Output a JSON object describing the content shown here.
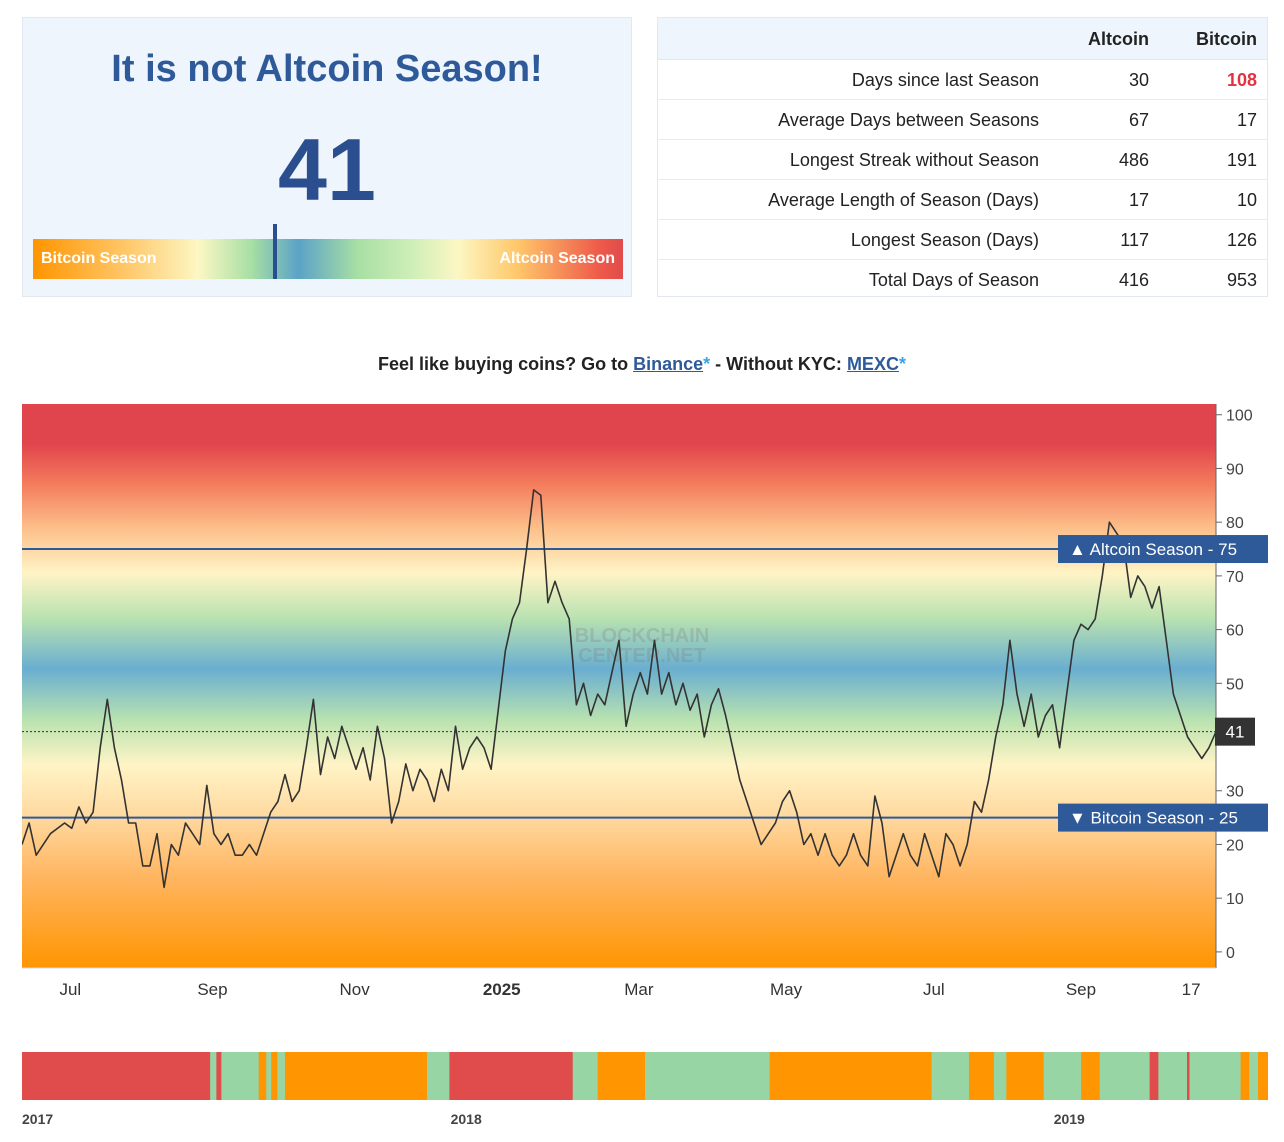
{
  "index_panel": {
    "headline": "It is not Altcoin Season!",
    "value": "41",
    "value_number": 41,
    "gauge": {
      "left_label": "Bitcoin Season",
      "right_label": "Altcoin Season",
      "fraction": 0.41
    }
  },
  "stats": {
    "columns": [
      "Altcoin",
      "Bitcoin"
    ],
    "rows": [
      {
        "label": "Days since last Season",
        "altcoin": "30",
        "bitcoin": "108",
        "bitcoin_highlight": true
      },
      {
        "label": "Average Days between Seasons",
        "altcoin": "67",
        "bitcoin": "17"
      },
      {
        "label": "Longest Streak without Season",
        "altcoin": "486",
        "bitcoin": "191"
      },
      {
        "label": "Average Length of Season (Days)",
        "altcoin": "17",
        "bitcoin": "10"
      },
      {
        "label": "Longest Season (Days)",
        "altcoin": "117",
        "bitcoin": "126"
      },
      {
        "label": "Total Days of Season",
        "altcoin": "416",
        "bitcoin": "953"
      }
    ]
  },
  "promo": {
    "prefix": "Feel like buying coins? Go to ",
    "link1": "Binance",
    "star": "*",
    "middle": " - Without KYC: ",
    "link2": "MEXC"
  },
  "watermark": [
    "BLOCKCHAIN",
    "CENTER.NET"
  ],
  "colors": {
    "altcoin": "#e04b4b",
    "bitcoin": "#ff9500",
    "neutral": "#98d5a4",
    "line_label": "#2e5a9a",
    "title": "#2e5a9a"
  },
  "chart_data": [
    {
      "type": "line",
      "ylim": [
        -3,
        102
      ],
      "yticks": [
        0,
        10,
        20,
        30,
        40,
        50,
        60,
        70,
        80,
        90,
        100
      ],
      "xticks": [
        {
          "label": "Jul",
          "x": 0.08,
          "bold": false
        },
        {
          "label": "Sep",
          "x": 2.08,
          "bold": false
        },
        {
          "label": "Nov",
          "x": 4.08,
          "bold": false
        },
        {
          "label": "2025",
          "x": 6.15,
          "bold": true
        },
        {
          "label": "Mar",
          "x": 8.08,
          "bold": false
        },
        {
          "label": "May",
          "x": 10.15,
          "bold": false
        },
        {
          "label": "Jul",
          "x": 12.23,
          "bold": false
        },
        {
          "label": "Sep",
          "x": 14.3,
          "bold": false
        },
        {
          "label": "17",
          "x": 15.85,
          "bold": false
        }
      ],
      "xrange": [
        -0.6,
        16.2
      ],
      "thresholds": [
        {
          "label": "Altcoin Season",
          "value": 75,
          "arrow": "▲"
        },
        {
          "label": "Bitcoin Season",
          "value": 25,
          "arrow": "▼"
        }
      ],
      "current": {
        "value": 41,
        "label": "41"
      },
      "series": [
        {
          "points": [
            [
              -0.6,
              20
            ],
            [
              -0.5,
              24
            ],
            [
              -0.4,
              18
            ],
            [
              -0.2,
              22
            ],
            [
              0,
              24
            ],
            [
              0.1,
              23
            ],
            [
              0.2,
              27
            ],
            [
              0.3,
              24
            ],
            [
              0.4,
              26
            ],
            [
              0.5,
              38
            ],
            [
              0.6,
              47
            ],
            [
              0.7,
              38
            ],
            [
              0.8,
              32
            ],
            [
              0.9,
              24
            ],
            [
              1.0,
              24
            ],
            [
              1.1,
              16
            ],
            [
              1.2,
              16
            ],
            [
              1.3,
              22
            ],
            [
              1.4,
              12
            ],
            [
              1.5,
              20
            ],
            [
              1.6,
              18
            ],
            [
              1.7,
              24
            ],
            [
              1.8,
              22
            ],
            [
              1.9,
              20
            ],
            [
              2.0,
              31
            ],
            [
              2.1,
              22
            ],
            [
              2.2,
              20
            ],
            [
              2.3,
              22
            ],
            [
              2.4,
              18
            ],
            [
              2.5,
              18
            ],
            [
              2.6,
              20
            ],
            [
              2.7,
              18
            ],
            [
              2.8,
              22
            ],
            [
              2.9,
              26
            ],
            [
              3.0,
              28
            ],
            [
              3.1,
              33
            ],
            [
              3.2,
              28
            ],
            [
              3.3,
              30
            ],
            [
              3.4,
              38
            ],
            [
              3.5,
              47
            ],
            [
              3.6,
              33
            ],
            [
              3.7,
              40
            ],
            [
              3.8,
              36
            ],
            [
              3.9,
              42
            ],
            [
              4.0,
              38
            ],
            [
              4.1,
              34
            ],
            [
              4.2,
              38
            ],
            [
              4.3,
              32
            ],
            [
              4.4,
              42
            ],
            [
              4.5,
              36
            ],
            [
              4.6,
              24
            ],
            [
              4.7,
              28
            ],
            [
              4.8,
              35
            ],
            [
              4.9,
              30
            ],
            [
              5.0,
              34
            ],
            [
              5.1,
              32
            ],
            [
              5.2,
              28
            ],
            [
              5.3,
              34
            ],
            [
              5.4,
              30
            ],
            [
              5.5,
              42
            ],
            [
              5.6,
              34
            ],
            [
              5.7,
              38
            ],
            [
              5.8,
              40
            ],
            [
              5.9,
              38
            ],
            [
              6.0,
              34
            ],
            [
              6.1,
              45
            ],
            [
              6.2,
              56
            ],
            [
              6.3,
              62
            ],
            [
              6.4,
              65
            ],
            [
              6.5,
              75
            ],
            [
              6.6,
              86
            ],
            [
              6.7,
              85
            ],
            [
              6.8,
              65
            ],
            [
              6.9,
              69
            ],
            [
              7.0,
              65
            ],
            [
              7.1,
              62
            ],
            [
              7.2,
              46
            ],
            [
              7.3,
              50
            ],
            [
              7.4,
              44
            ],
            [
              7.5,
              48
            ],
            [
              7.6,
              46
            ],
            [
              7.7,
              52
            ],
            [
              7.8,
              58
            ],
            [
              7.9,
              42
            ],
            [
              8.0,
              48
            ],
            [
              8.1,
              52
            ],
            [
              8.2,
              48
            ],
            [
              8.3,
              58
            ],
            [
              8.4,
              48
            ],
            [
              8.5,
              52
            ],
            [
              8.6,
              46
            ],
            [
              8.7,
              50
            ],
            [
              8.8,
              45
            ],
            [
              8.9,
              48
            ],
            [
              9.0,
              40
            ],
            [
              9.1,
              46
            ],
            [
              9.2,
              49
            ],
            [
              9.3,
              44
            ],
            [
              9.4,
              38
            ],
            [
              9.5,
              32
            ],
            [
              9.6,
              28
            ],
            [
              9.7,
              24
            ],
            [
              9.8,
              20
            ],
            [
              9.9,
              22
            ],
            [
              10.0,
              24
            ],
            [
              10.1,
              28
            ],
            [
              10.2,
              30
            ],
            [
              10.3,
              26
            ],
            [
              10.4,
              20
            ],
            [
              10.5,
              22
            ],
            [
              10.6,
              18
            ],
            [
              10.7,
              22
            ],
            [
              10.8,
              18
            ],
            [
              10.9,
              16
            ],
            [
              11.0,
              18
            ],
            [
              11.1,
              22
            ],
            [
              11.2,
              18
            ],
            [
              11.3,
              16
            ],
            [
              11.4,
              29
            ],
            [
              11.5,
              24
            ],
            [
              11.6,
              14
            ],
            [
              11.7,
              18
            ],
            [
              11.8,
              22
            ],
            [
              11.9,
              18
            ],
            [
              12.0,
              16
            ],
            [
              12.1,
              22
            ],
            [
              12.2,
              18
            ],
            [
              12.3,
              14
            ],
            [
              12.4,
              22
            ],
            [
              12.5,
              20
            ],
            [
              12.6,
              16
            ],
            [
              12.7,
              20
            ],
            [
              12.8,
              28
            ],
            [
              12.9,
              26
            ],
            [
              13.0,
              32
            ],
            [
              13.1,
              40
            ],
            [
              13.2,
              46
            ],
            [
              13.3,
              58
            ],
            [
              13.4,
              48
            ],
            [
              13.5,
              42
            ],
            [
              13.6,
              48
            ],
            [
              13.7,
              40
            ],
            [
              13.8,
              44
            ],
            [
              13.9,
              46
            ],
            [
              14.0,
              38
            ],
            [
              14.1,
              48
            ],
            [
              14.2,
              58
            ],
            [
              14.3,
              61
            ],
            [
              14.4,
              60
            ],
            [
              14.5,
              62
            ],
            [
              14.6,
              70
            ],
            [
              14.7,
              80
            ],
            [
              14.8,
              78
            ],
            [
              14.9,
              76
            ],
            [
              15.0,
              66
            ],
            [
              15.1,
              70
            ],
            [
              15.2,
              68
            ],
            [
              15.3,
              64
            ],
            [
              15.4,
              68
            ],
            [
              15.5,
              58
            ],
            [
              15.6,
              48
            ],
            [
              15.7,
              44
            ],
            [
              15.8,
              40
            ],
            [
              15.9,
              38
            ],
            [
              16.0,
              36
            ],
            [
              16.1,
              38
            ],
            [
              16.2,
              41
            ]
          ]
        }
      ]
    },
    {
      "type": "timeline",
      "labels": [
        {
          "label": "2017",
          "x": 0.0
        },
        {
          "label": "2018",
          "x": 0.344
        },
        {
          "label": "2019",
          "x": 0.828
        }
      ],
      "segments": [
        {
          "start": 0.0,
          "end": 0.151,
          "state": "altcoin"
        },
        {
          "start": 0.151,
          "end": 0.156,
          "state": "neutral"
        },
        {
          "start": 0.156,
          "end": 0.16,
          "state": "altcoin"
        },
        {
          "start": 0.16,
          "end": 0.19,
          "state": "neutral"
        },
        {
          "start": 0.19,
          "end": 0.196,
          "state": "bitcoin"
        },
        {
          "start": 0.196,
          "end": 0.2,
          "state": "neutral"
        },
        {
          "start": 0.2,
          "end": 0.205,
          "state": "bitcoin"
        },
        {
          "start": 0.205,
          "end": 0.211,
          "state": "neutral"
        },
        {
          "start": 0.211,
          "end": 0.325,
          "state": "bitcoin"
        },
        {
          "start": 0.325,
          "end": 0.343,
          "state": "neutral"
        },
        {
          "start": 0.343,
          "end": 0.35,
          "state": "altcoin"
        },
        {
          "start": 0.35,
          "end": 0.442,
          "state": "altcoin"
        },
        {
          "start": 0.442,
          "end": 0.462,
          "state": "neutral"
        },
        {
          "start": 0.462,
          "end": 0.5,
          "state": "bitcoin"
        },
        {
          "start": 0.5,
          "end": 0.6,
          "state": "neutral"
        },
        {
          "start": 0.6,
          "end": 0.73,
          "state": "bitcoin"
        },
        {
          "start": 0.73,
          "end": 0.76,
          "state": "neutral"
        },
        {
          "start": 0.76,
          "end": 0.78,
          "state": "bitcoin"
        },
        {
          "start": 0.78,
          "end": 0.79,
          "state": "neutral"
        },
        {
          "start": 0.79,
          "end": 0.82,
          "state": "bitcoin"
        },
        {
          "start": 0.82,
          "end": 0.85,
          "state": "neutral"
        },
        {
          "start": 0.85,
          "end": 0.865,
          "state": "bitcoin"
        },
        {
          "start": 0.865,
          "end": 0.905,
          "state": "neutral"
        },
        {
          "start": 0.905,
          "end": 0.912,
          "state": "altcoin"
        },
        {
          "start": 0.912,
          "end": 0.935,
          "state": "neutral"
        },
        {
          "start": 0.935,
          "end": 0.937,
          "state": "altcoin"
        },
        {
          "start": 0.937,
          "end": 0.978,
          "state": "neutral"
        },
        {
          "start": 0.978,
          "end": 0.985,
          "state": "bitcoin"
        },
        {
          "start": 0.985,
          "end": 0.992,
          "state": "neutral"
        },
        {
          "start": 0.992,
          "end": 1.0,
          "state": "bitcoin"
        }
      ]
    }
  ]
}
